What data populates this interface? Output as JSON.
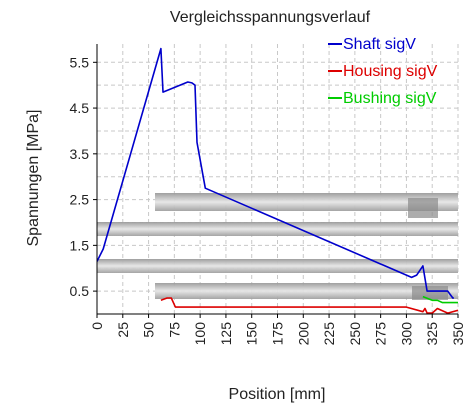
{
  "chart_data": {
    "type": "line",
    "title": "Vergleichsspannungsverlauf",
    "xlabel": "Position [mm]",
    "ylabel": "Spannungen [MPa]",
    "xlim": [
      0,
      350
    ],
    "ylim": [
      0,
      5.9
    ],
    "x_ticks": [
      "0",
      "25",
      "50",
      "75",
      "100",
      "125",
      "150",
      "175",
      "200",
      "225",
      "250",
      "275",
      "300",
      "325",
      "350"
    ],
    "y_ticks": [
      "0.5",
      "1.5",
      "2.5",
      "3.5",
      "4.5",
      "5.5"
    ],
    "y_tick_values": [
      0.5,
      1.5,
      2.5,
      3.5,
      4.5,
      5.5
    ],
    "grid": true,
    "legend_position": "top-right",
    "series": [
      {
        "name": "Shaft sigV",
        "color": "#0000cc",
        "x": [
          0,
          6,
          62,
          64,
          88,
          92,
          95,
          97,
          105,
          305,
          310,
          316,
          320,
          340,
          345,
          346
        ],
        "y": [
          1.15,
          1.42,
          5.8,
          4.85,
          5.07,
          5.05,
          5.0,
          3.75,
          2.75,
          0.8,
          0.85,
          1.05,
          0.5,
          0.5,
          0.35,
          0.35
        ]
      },
      {
        "name": "Housing sigV",
        "color": "#dd0000",
        "x": [
          62,
          68,
          72,
          76,
          80,
          100,
          300,
          316,
          318,
          320,
          325,
          330,
          340,
          350
        ],
        "y": [
          0.3,
          0.35,
          0.35,
          0.15,
          0.15,
          0.15,
          0.15,
          0.05,
          0.12,
          0.02,
          0.02,
          0.12,
          0.02,
          0.08
        ]
      },
      {
        "name": "Bushing sigV",
        "color": "#00cc00",
        "x": [
          316,
          325,
          330,
          335,
          350
        ],
        "y": [
          0.38,
          0.3,
          0.3,
          0.25,
          0.25
        ]
      }
    ]
  }
}
